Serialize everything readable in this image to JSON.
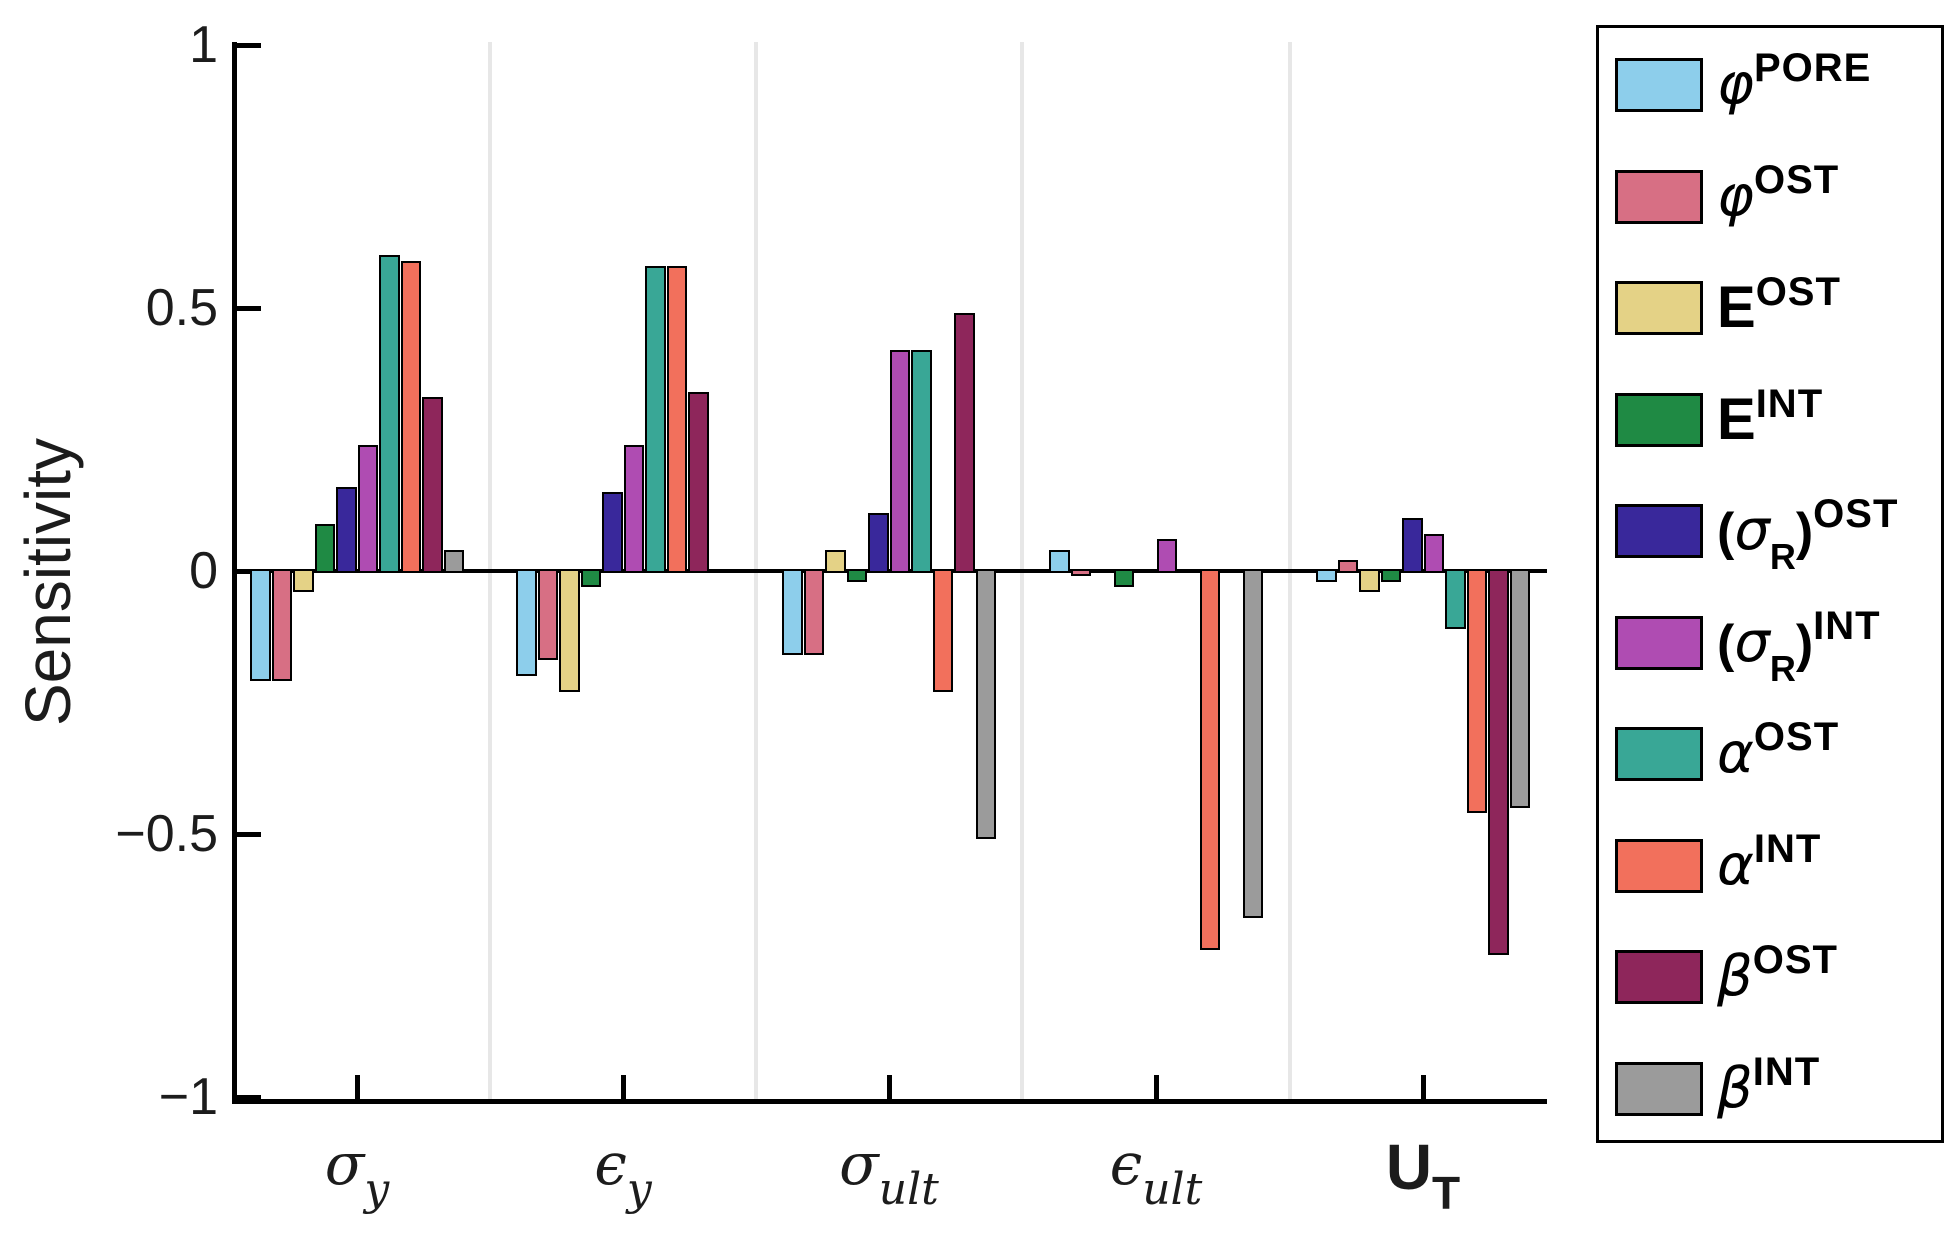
{
  "figure": {
    "background": "#ffffff",
    "axis_color": "#000000",
    "separator_color": "#e7e7e7"
  },
  "chart_data": {
    "type": "bar",
    "title": "",
    "xlabel": "",
    "ylabel": "Sensitivity",
    "ylim": [
      -1,
      1
    ],
    "grid": "vertical-category-separators",
    "legend_position": "right-outside",
    "bar_edge_color": "#000000",
    "yticks": [
      {
        "value": 1,
        "label": "1"
      },
      {
        "value": 0.5,
        "label": "0.5"
      },
      {
        "value": 0,
        "label": "0"
      },
      {
        "value": -0.5,
        "label": "−0.5"
      },
      {
        "value": -1,
        "label": "−1"
      }
    ],
    "categories": [
      {
        "id": "sigma-y",
        "main": "σ",
        "sub": "y",
        "style": "greek"
      },
      {
        "id": "epsilon-y",
        "main": "ϵ",
        "sub": "y",
        "style": "greek"
      },
      {
        "id": "sigma-ult",
        "main": "σ",
        "sub": "ult",
        "style": "greek"
      },
      {
        "id": "epsilon-ult",
        "main": "ϵ",
        "sub": "ult",
        "style": "greek"
      },
      {
        "id": "u-t",
        "main": "U",
        "sub": "T",
        "style": "roman"
      }
    ],
    "series": [
      {
        "id": "phi-pore",
        "color": "#8DCEEB",
        "label": {
          "open": "",
          "base": "φ",
          "sub": "",
          "close": "",
          "sup": "PORE",
          "base_style": "greek"
        },
        "values": [
          -0.21,
          -0.2,
          -0.16,
          0.04,
          -0.02
        ]
      },
      {
        "id": "phi-ost",
        "color": "#D76F84",
        "label": {
          "open": "",
          "base": "φ",
          "sub": "",
          "close": "",
          "sup": "OST",
          "base_style": "greek"
        },
        "values": [
          -0.21,
          -0.17,
          -0.16,
          -0.01,
          0.02
        ]
      },
      {
        "id": "E-ost",
        "color": "#E4D286",
        "label": {
          "open": "",
          "base": "E",
          "sub": "",
          "close": "",
          "sup": "OST",
          "base_style": "roman"
        },
        "values": [
          -0.04,
          -0.23,
          0.04,
          0.0,
          -0.04
        ]
      },
      {
        "id": "E-int",
        "color": "#1F8A44",
        "label": {
          "open": "",
          "base": "E",
          "sub": "",
          "close": "",
          "sup": "INT",
          "base_style": "roman"
        },
        "values": [
          0.09,
          -0.03,
          -0.02,
          -0.03,
          -0.02
        ]
      },
      {
        "id": "sigmaR-ost",
        "color": "#39289B",
        "label": {
          "open": "(",
          "base": "σ",
          "sub": "R",
          "close": ")",
          "sup": "OST",
          "base_style": "greek"
        },
        "values": [
          0.16,
          0.15,
          0.11,
          0.0,
          0.1
        ]
      },
      {
        "id": "sigmaR-int",
        "color": "#AF4CB2",
        "label": {
          "open": "(",
          "base": "σ",
          "sub": "R",
          "close": ")",
          "sup": "INT",
          "base_style": "greek"
        },
        "values": [
          0.24,
          0.24,
          0.42,
          0.06,
          0.07
        ]
      },
      {
        "id": "alpha-ost",
        "color": "#39A796",
        "label": {
          "open": "",
          "base": "α",
          "sub": "",
          "close": "",
          "sup": "OST",
          "base_style": "greek"
        },
        "values": [
          0.6,
          0.58,
          0.42,
          0.0,
          -0.11
        ]
      },
      {
        "id": "alpha-int",
        "color": "#F2705C",
        "label": {
          "open": "",
          "base": "α",
          "sub": "",
          "close": "",
          "sup": "INT",
          "base_style": "greek"
        },
        "values": [
          0.59,
          0.58,
          -0.23,
          -0.72,
          -0.46
        ]
      },
      {
        "id": "beta-ost",
        "color": "#8E265B",
        "label": {
          "open": "",
          "base": "β",
          "sub": "",
          "close": "",
          "sup": "OST",
          "base_style": "greek"
        },
        "values": [
          0.33,
          0.34,
          0.49,
          0.0,
          -0.73
        ]
      },
      {
        "id": "beta-int",
        "color": "#9B9B9B",
        "label": {
          "open": "",
          "base": "β",
          "sub": "",
          "close": "",
          "sup": "INT",
          "base_style": "greek"
        },
        "values": [
          0.04,
          0.0,
          -0.51,
          -0.66,
          -0.45
        ]
      }
    ]
  }
}
